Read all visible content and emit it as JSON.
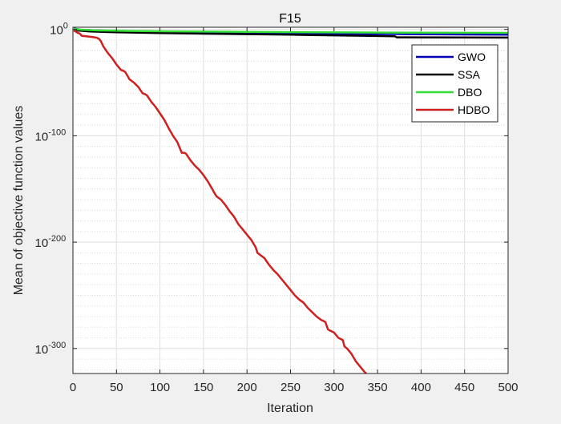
{
  "chart_data": {
    "type": "line",
    "title": "F15",
    "xlabel": "Iteration",
    "ylabel": "Mean of objective function values",
    "xlim": [
      0,
      500
    ],
    "ylim_log10": [
      -323.5,
      2
    ],
    "yscale": "log",
    "grid": true,
    "minor_grid": true,
    "legend_position": "top-right",
    "x_ticks": [
      0,
      50,
      100,
      150,
      200,
      250,
      300,
      350,
      400,
      450,
      500
    ],
    "y_ticks": [
      {
        "base": "10",
        "exp": "0",
        "log10": 0
      },
      {
        "base": "10",
        "exp": "-100",
        "log10": -100
      },
      {
        "base": "10",
        "exp": "-200",
        "log10": -200
      },
      {
        "base": "10",
        "exp": "-300",
        "log10": -300
      }
    ],
    "series": [
      {
        "name": "GWO",
        "color": "#0000bb",
        "x": [
          1,
          10,
          30,
          60,
          100,
          150,
          200,
          250,
          300,
          370,
          400,
          500
        ],
        "log10_y": [
          0.8,
          -0.5,
          -1.0,
          -1.6,
          -2.1,
          -2.7,
          -3.2,
          -3.6,
          -4.0,
          -4.3,
          -4.6,
          -5.0
        ]
      },
      {
        "name": "SSA",
        "color": "#000000",
        "x": [
          1,
          5,
          20,
          50,
          100,
          150,
          200,
          250,
          300,
          350,
          370,
          372,
          500
        ],
        "log10_y": [
          -0.3,
          -1.0,
          -2.0,
          -2.7,
          -3.5,
          -4.0,
          -4.5,
          -5.0,
          -5.6,
          -6.2,
          -6.5,
          -7.5,
          -7.7
        ]
      },
      {
        "name": "DBO",
        "color": "#33dd33",
        "x": [
          1,
          10,
          30,
          60,
          100,
          150,
          200,
          250,
          300,
          350,
          400,
          500
        ],
        "log10_y": [
          0.5,
          -0.3,
          -1.0,
          -1.4,
          -1.8,
          -2.1,
          -2.4,
          -2.6,
          -2.8,
          -3.0,
          -3.1,
          -3.3
        ]
      },
      {
        "name": "HDBO",
        "color": "#d01f1f",
        "x": [
          1,
          3,
          5,
          8,
          10,
          15,
          20,
          25,
          28,
          30,
          32,
          35,
          40,
          45,
          50,
          55,
          58,
          60,
          63,
          65,
          70,
          75,
          80,
          83,
          85,
          90,
          95,
          100,
          105,
          110,
          115,
          120,
          122,
          125,
          128,
          130,
          135,
          140,
          145,
          150,
          155,
          160,
          162,
          165,
          170,
          175,
          180,
          185,
          190,
          195,
          200,
          205,
          210,
          212,
          215,
          220,
          225,
          230,
          235,
          240,
          245,
          250,
          255,
          260,
          265,
          270,
          275,
          280,
          285,
          290,
          293,
          295,
          300,
          305,
          310,
          312,
          315,
          320,
          325,
          330,
          335,
          337
        ],
        "log10_y": [
          -1,
          -2,
          -3,
          -4,
          -6,
          -6.5,
          -7,
          -7.5,
          -8,
          -9,
          -11,
          -16,
          -22,
          -27,
          -33,
          -38,
          -39,
          -40,
          -44,
          -47,
          -50,
          -54,
          -60,
          -61,
          -62,
          -68,
          -73,
          -79,
          -85,
          -93,
          -100,
          -106,
          -110,
          -116,
          -116,
          -117,
          -123,
          -128,
          -132,
          -137,
          -143,
          -150,
          -153,
          -157,
          -160,
          -165,
          -171,
          -176,
          -183,
          -188,
          -193,
          -198,
          -205,
          -210,
          -212,
          -215,
          -221,
          -226,
          -230,
          -235,
          -240,
          -245,
          -250,
          -254,
          -257,
          -262,
          -266,
          -270,
          -273,
          -275,
          -282,
          -283,
          -285,
          -290,
          -292,
          -298,
          -300,
          -305,
          -312,
          -317,
          -322,
          -323.5
        ]
      }
    ]
  }
}
